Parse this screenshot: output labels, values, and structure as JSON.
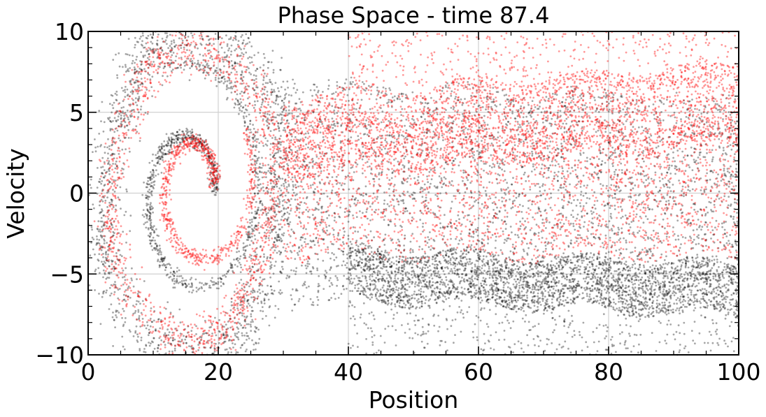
{
  "chart_data": {
    "type": "scatter",
    "title": "Phase Space - time 87.4",
    "xlabel": "Position",
    "ylabel": "Velocity",
    "xlim": [
      0,
      100
    ],
    "ylim": [
      -10,
      10
    ],
    "xticks": [
      0,
      20,
      40,
      60,
      80,
      100
    ],
    "xtick_labels": [
      "0",
      "20",
      "40",
      "60",
      "80",
      "100"
    ],
    "yticks": [
      -10,
      -5,
      0,
      5,
      10
    ],
    "ytick_labels": [
      "−10",
      "−5",
      "0",
      "5",
      "10"
    ],
    "grid": true,
    "series": [
      {
        "color": "#000000",
        "alpha": 0.35,
        "regions": [
          {
            "kind": "ring",
            "cx": 16,
            "cy": 0,
            "rx": 13.5,
            "ry": 10,
            "thickness": 2.5,
            "n": 1800
          },
          {
            "kind": "spiral",
            "cx": 16,
            "cy": 0,
            "r0": 3,
            "r1": 11,
            "turns": 1.3,
            "n": 900
          },
          {
            "kind": "band",
            "x": [
              28,
              100
            ],
            "ymid_start": 0,
            "ymid_end": 0,
            "half_start": 7,
            "half_end": 6,
            "n": 3200
          },
          {
            "kind": "band",
            "x": [
              40,
              100
            ],
            "ymid_start": -5,
            "ymid_end": -6,
            "half_start": 1.6,
            "half_end": 1.6,
            "n": 2600
          },
          {
            "kind": "sparse",
            "x": [
              40,
              100
            ],
            "y": [
              -10,
              -6.5
            ],
            "n": 420
          }
        ]
      },
      {
        "color": "#ff0000",
        "alpha": 0.4,
        "regions": [
          {
            "kind": "ring",
            "cx": 16,
            "cy": 0,
            "rx": 12.5,
            "ry": 9,
            "thickness": 1.8,
            "n": 1200
          },
          {
            "kind": "spiral",
            "cx": 17,
            "cy": 0.5,
            "r0": 2,
            "r1": 8,
            "turns": 1.1,
            "n": 700
          },
          {
            "kind": "band",
            "x": [
              30,
              100
            ],
            "ymid_start": 3.5,
            "ymid_end": 5.5,
            "half_start": 2.5,
            "half_end": 2.5,
            "n": 2600
          },
          {
            "kind": "band",
            "x": [
              30,
              100
            ],
            "ymid_start": 0.5,
            "ymid_end": 0,
            "half_start": 4.5,
            "half_end": 4,
            "n": 2200
          },
          {
            "kind": "sparse",
            "x": [
              40,
              100
            ],
            "y": [
              6.5,
              10
            ],
            "n": 420
          }
        ]
      }
    ]
  }
}
